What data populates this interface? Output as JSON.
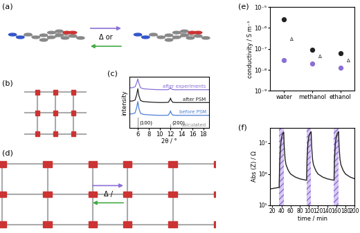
{
  "chart_data": [
    {
      "type": "line",
      "title": "(c)",
      "xlabel": "2θ / °",
      "ylabel": "intensity",
      "x": [
        4.5,
        5.0,
        5.5,
        5.8,
        6.0,
        6.2,
        6.5,
        7.0,
        8.0,
        9.0,
        10.0,
        11.0,
        11.6,
        11.9,
        12.0,
        12.1,
        12.4,
        13.0,
        14.0,
        16.0,
        18.0,
        19.0
      ],
      "series": [
        {
          "name": "calculated",
          "type": "bar",
          "color": "#888888",
          "values": [
            0,
            0,
            0,
            0,
            1.1,
            0,
            0,
            0,
            0,
            0,
            0,
            0,
            0,
            0,
            0.35,
            0,
            0,
            0,
            0,
            0,
            0,
            0
          ]
        },
        {
          "name": "before PSM",
          "type": "line",
          "color": "#4a7fd4",
          "values": [
            1.45,
            1.45,
            1.55,
            2.1,
            2.7,
            2.0,
            1.5,
            1.4,
            1.35,
            1.32,
            1.3,
            1.3,
            1.32,
            1.6,
            1.75,
            1.55,
            1.32,
            1.3,
            1.3,
            1.3,
            1.3,
            1.3
          ]
        },
        {
          "name": "after PSM",
          "type": "line",
          "color": "#222222",
          "values": [
            2.75,
            2.75,
            2.85,
            3.4,
            4.0,
            3.3,
            2.8,
            2.7,
            2.65,
            2.62,
            2.6,
            2.6,
            2.62,
            2.9,
            3.05,
            2.85,
            2.62,
            2.6,
            2.6,
            2.6,
            2.6,
            2.6
          ]
        },
        {
          "name": "after experiments",
          "type": "line",
          "color": "#8a6fd6",
          "values": [
            4.1,
            4.1,
            4.2,
            4.6,
            5.0,
            4.55,
            4.1,
            4.0,
            3.95,
            3.92,
            3.9,
            3.9,
            3.91,
            4.05,
            4.1,
            4.0,
            3.91,
            3.9,
            3.9,
            3.9,
            3.9,
            3.9
          ]
        }
      ],
      "annotations": [
        {
          "text": "(100)",
          "x": 6.3,
          "y": 0.5
        },
        {
          "text": "(200)",
          "x": 12.3,
          "y": 0.5
        }
      ],
      "xlim": [
        4.5,
        19
      ],
      "xticks": [
        6,
        8,
        10,
        12,
        14,
        16,
        18
      ],
      "ylim": [
        0,
        5.2
      ],
      "tick_labels": "x"
    },
    {
      "type": "scatter",
      "title": "(e)",
      "ylabel": "conductivity / S m⁻¹",
      "log": "y",
      "categories": [
        "water",
        "methanol",
        "ethanol"
      ],
      "series": [
        {
          "color": "#222222",
          "marker": "o",
          "values": [
            2.5e-06,
            9e-08,
            6e-08
          ]
        },
        {
          "color": "#8a6fd6",
          "marker": "o",
          "values": [
            3e-08,
            2e-08,
            1.3e-08
          ]
        }
      ],
      "annotation": "Δ",
      "ylim": [
        1e-09,
        1e-05
      ],
      "yticks": [
        {
          "value": 1e-09,
          "label": "10⁻⁹"
        },
        {
          "value": 1e-08,
          "label": "10⁻⁸"
        },
        {
          "value": 1e-07,
          "label": "10⁻⁷"
        },
        {
          "value": 1e-06,
          "label": "10⁻⁶"
        },
        {
          "value": 1e-05,
          "label": "10⁻⁵"
        }
      ]
    },
    {
      "type": "line",
      "title": "(f)",
      "xlabel": "time / min",
      "ylabel": "Abs (Z) / Ω",
      "log": "y",
      "x": [
        15,
        20,
        25,
        30,
        35,
        36,
        38,
        40,
        42,
        44,
        45,
        46,
        48,
        50,
        55,
        60,
        70,
        80,
        90,
        95,
        96,
        98,
        100,
        102,
        104,
        105,
        106,
        108,
        110,
        115,
        120,
        130,
        140,
        150,
        155,
        156,
        158,
        160,
        162,
        164,
        165,
        166,
        168,
        170,
        175,
        180,
        190,
        200
      ],
      "series": [
        {
          "color": "#222222",
          "values": [
            330000,
            340000,
            350000,
            360000,
            370000,
            2000000,
            8000000,
            14000000,
            19000000,
            21000000,
            22000000,
            8000000,
            3000000,
            2000000,
            1300000,
            1000000,
            800000,
            700000,
            650000,
            630000,
            3000000,
            10000000,
            16000000,
            20000000,
            22000000,
            23000000,
            8000000,
            3000000,
            2000000,
            1300000,
            1000000,
            800000,
            700000,
            650000,
            630000,
            3000000,
            10000000,
            16000000,
            20000000,
            22000000,
            23000000,
            8000000,
            3000000,
            2000000,
            1300000,
            1000000,
            800000,
            700000
          ]
        }
      ],
      "irradiation": [
        [
          35,
          45
        ],
        [
          95,
          105
        ],
        [
          155,
          165
        ]
      ],
      "xlim": [
        15,
        200
      ],
      "xticks": [
        20,
        40,
        60,
        80,
        100,
        120,
        140,
        160,
        180,
        200
      ],
      "ylim": [
        100000,
        30000000
      ],
      "yticks": [
        {
          "value": 100000,
          "label": "10⁵"
        },
        {
          "value": 1000000,
          "label": "10⁶"
        },
        {
          "value": 10000000,
          "label": "10⁷"
        }
      ]
    }
  ],
  "diagrams": [
    {
      "label": "(a)",
      "arrow_text": "Δ or"
    },
    {
      "label": "(b)"
    },
    {
      "label": "(d)",
      "arrow_text": "Δ /"
    }
  ]
}
